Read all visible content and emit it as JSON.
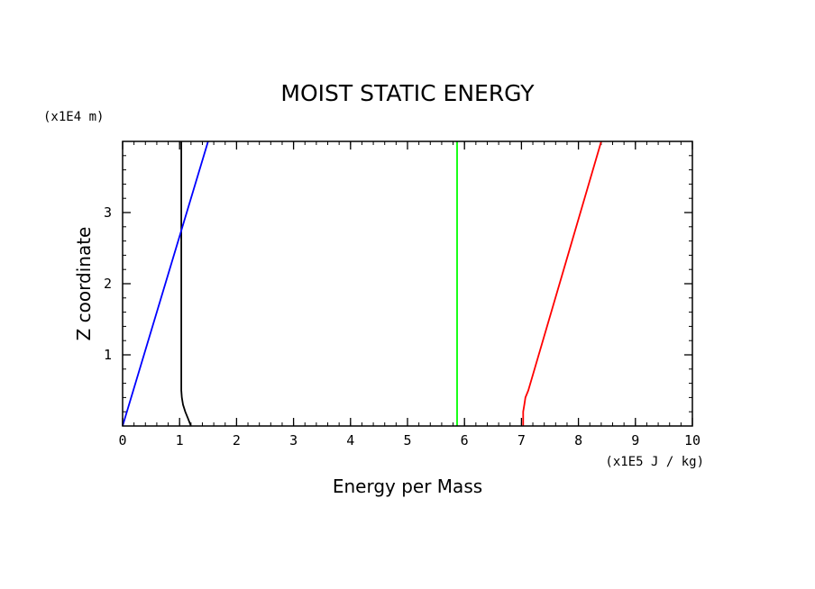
{
  "chart_data": {
    "type": "line",
    "title": "MOIST STATIC ENERGY",
    "xlabel": "Energy per Mass",
    "ylabel": "Z coordinate",
    "x_units": "(x1E5 J / kg)",
    "y_units": "(x1E4 m)",
    "xlim": [
      0,
      10
    ],
    "ylim": [
      0,
      4
    ],
    "x_ticks": [
      0,
      1,
      2,
      3,
      4,
      5,
      6,
      7,
      8,
      9,
      10
    ],
    "y_ticks": [
      1,
      2,
      3
    ],
    "x_minor_step": 0.2,
    "y_minor_step": 0.2,
    "series": [
      {
        "name": "black",
        "color": "#000000",
        "x": [
          1.2,
          1.15,
          1.1,
          1.06,
          1.04,
          1.03,
          1.03,
          1.03
        ],
        "y": [
          0,
          0.1,
          0.2,
          0.3,
          0.4,
          0.5,
          2.0,
          4.0
        ]
      },
      {
        "name": "blue",
        "color": "#0000ff",
        "x": [
          0,
          1.5
        ],
        "y": [
          0,
          4.0
        ]
      },
      {
        "name": "green",
        "color": "#00ff00",
        "x": [
          5.87,
          5.87
        ],
        "y": [
          0,
          4.0
        ]
      },
      {
        "name": "red",
        "color": "#ff0000",
        "x": [
          7.03,
          7.03,
          7.05,
          7.07,
          7.12,
          8.4
        ],
        "y": [
          0,
          0.2,
          0.3,
          0.4,
          0.5,
          4.0
        ]
      }
    ]
  }
}
